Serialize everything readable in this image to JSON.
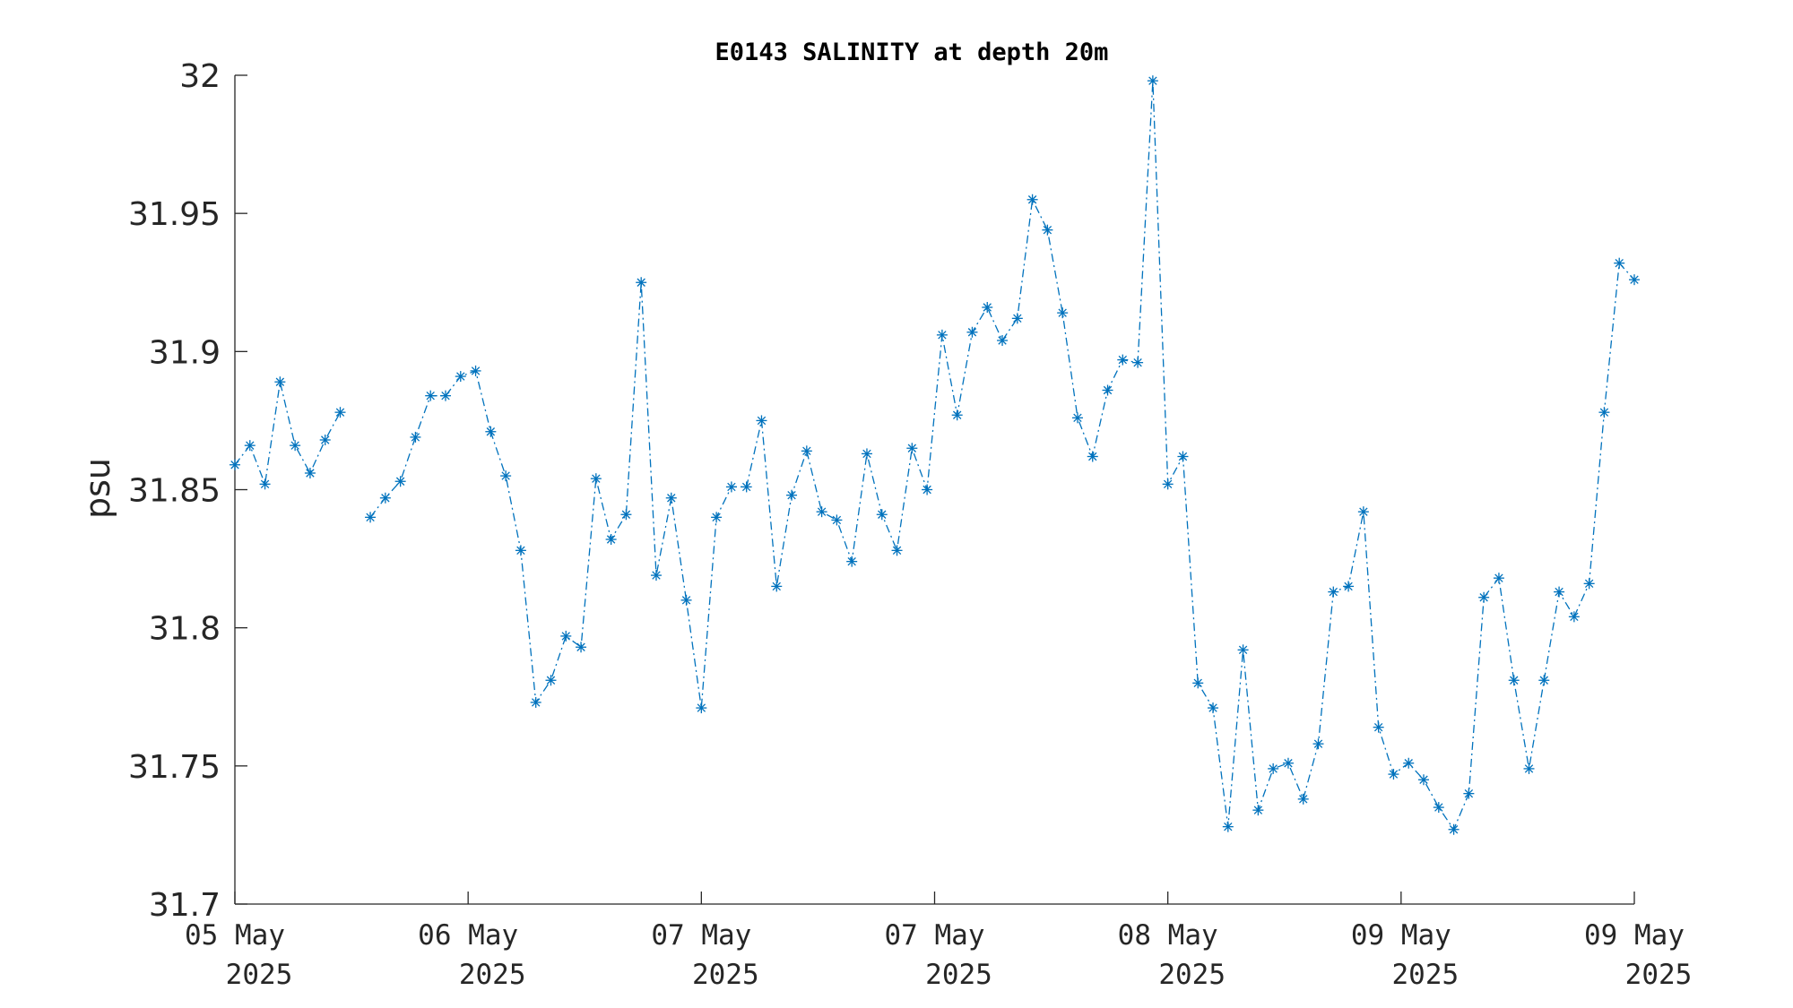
{
  "chart_data": {
    "type": "line",
    "title": "E0143 SALINITY at depth 20m",
    "xlabel": "",
    "ylabel": "psu",
    "ylim": [
      31.7,
      32
    ],
    "yticks": [
      "31.7",
      "31.75",
      "31.8",
      "31.85",
      "31.9",
      "31.95",
      "32"
    ],
    "xticks": [
      {
        "day": "05 May",
        "year": "2025"
      },
      {
        "day": "06 May",
        "year": "2025"
      },
      {
        "day": "07 May",
        "year": "2025"
      },
      {
        "day": "07 May",
        "year": "2025"
      },
      {
        "day": "08 May",
        "year": "2025"
      },
      {
        "day": "09 May",
        "year": "2025"
      },
      {
        "day": "09 May",
        "year": "2025"
      }
    ],
    "line_style": "dash-dot",
    "marker": "asterisk",
    "color": "#0072BD",
    "grid": false,
    "series": [
      {
        "segments": [
          [
            31.859,
            31.866,
            31.852,
            31.889,
            31.866,
            31.856,
            31.868,
            31.878
          ],
          [
            31.84,
            31.847,
            31.853,
            31.869,
            31.884,
            31.884,
            31.891,
            31.893,
            31.871,
            31.855,
            31.828,
            31.773,
            31.781,
            31.797,
            31.793,
            31.854,
            31.832,
            31.841,
            31.925,
            31.819,
            31.847,
            31.81,
            31.771,
            31.84,
            31.851,
            31.851,
            31.875,
            31.815,
            31.848,
            31.864,
            31.842,
            31.839,
            31.824,
            31.863,
            31.841,
            31.828,
            31.865,
            31.85,
            31.906,
            31.877,
            31.907,
            31.916,
            31.904,
            31.912,
            31.955,
            31.944,
            31.914,
            31.876,
            31.862,
            31.886,
            31.897,
            31.896,
            31.998,
            31.852,
            31.862,
            31.78,
            31.771,
            31.728,
            31.792,
            31.734,
            31.749,
            31.751,
            31.738,
            31.758,
            31.813,
            31.815,
            31.842,
            31.764,
            31.747,
            31.751,
            31.745,
            31.735,
            31.727,
            31.74,
            31.811,
            31.818,
            31.781,
            31.749,
            31.781,
            31.813,
            31.804,
            31.816,
            31.878,
            31.932,
            31.926
          ]
        ]
      }
    ]
  }
}
